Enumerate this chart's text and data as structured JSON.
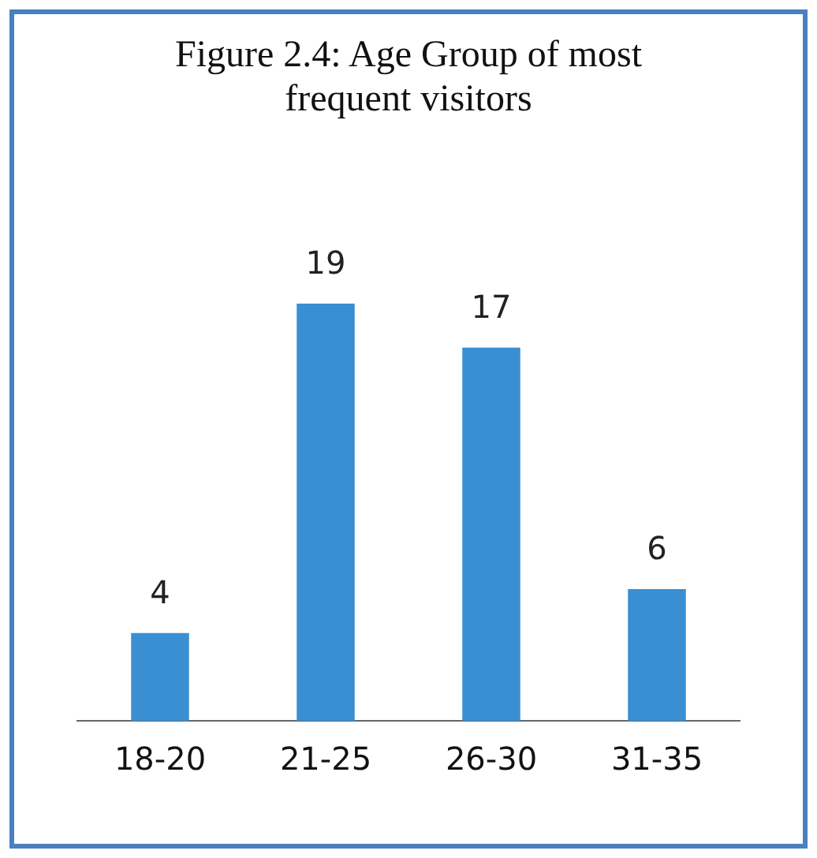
{
  "chart_data": {
    "type": "bar",
    "title": "Figure 2.4: Age Group of most frequent visitors",
    "categories": [
      "18-20",
      "21-25",
      "26-30",
      "31-35"
    ],
    "values": [
      4,
      19,
      17,
      6
    ],
    "color": "#3a8fd3",
    "data_labels": true,
    "grid": false,
    "legend": false
  }
}
